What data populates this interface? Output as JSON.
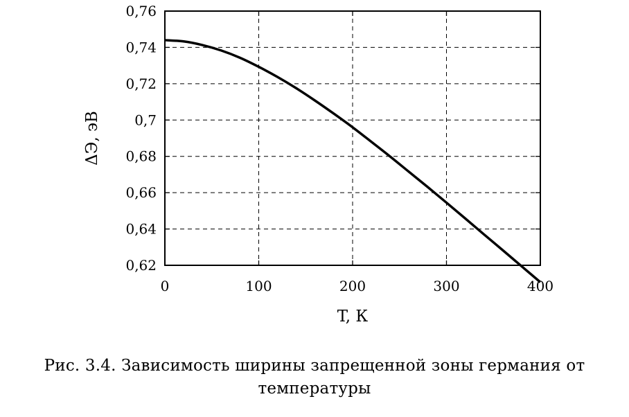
{
  "chart_data": {
    "type": "line",
    "xlabel": "T, К",
    "ylabel": "ΔЭ, эВ",
    "xlim": [
      0,
      400
    ],
    "ylim": [
      0.62,
      0.76
    ],
    "x_ticks": [
      0,
      100,
      200,
      300,
      400
    ],
    "x_tick_labels": [
      "0",
      "100",
      "200",
      "300",
      "400"
    ],
    "y_ticks": [
      0.62,
      0.64,
      0.66,
      0.68,
      0.7,
      0.72,
      0.74,
      0.76
    ],
    "y_tick_labels": [
      "0,62",
      "0,64",
      "0,66",
      "0,68",
      "0,7",
      "0,72",
      "0,74",
      "0,76"
    ],
    "grid": true,
    "grid_style": "dashed",
    "series": [
      {
        "x": [
          0,
          20,
          40,
          60,
          80,
          100,
          120,
          140,
          160,
          180,
          200,
          220,
          240,
          260,
          280,
          300,
          320,
          340,
          360,
          380,
          400
        ],
        "y": [
          0.744,
          0.7433,
          0.7413,
          0.7383,
          0.7343,
          0.7293,
          0.7237,
          0.7175,
          0.7107,
          0.7035,
          0.696,
          0.688,
          0.6799,
          0.6715,
          0.6631,
          0.6545,
          0.6458,
          0.637,
          0.6283,
          0.6195,
          0.6107
        ],
        "color": "#000000"
      }
    ]
  },
  "caption": {
    "line1": "Рис. 3.4. Зависимость ширины запрещенной зоны германия от",
    "line2": "температуры"
  }
}
